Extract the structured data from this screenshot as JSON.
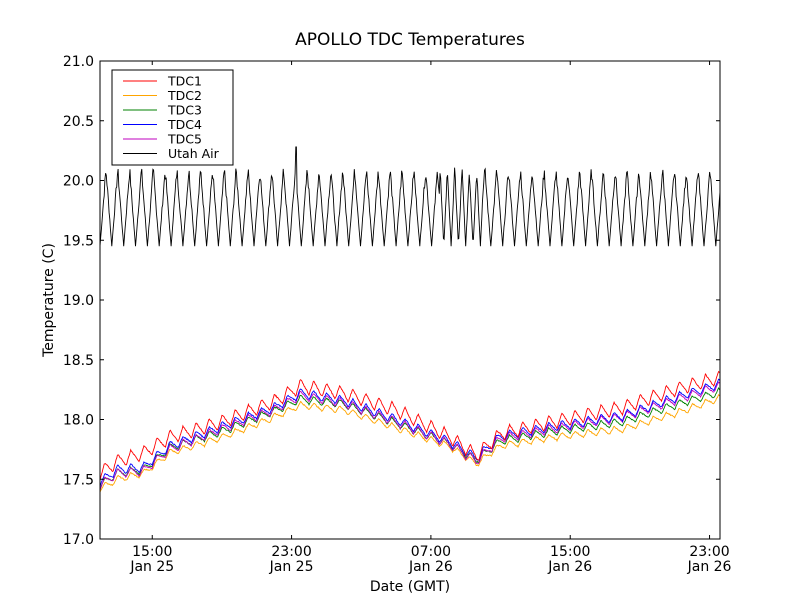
{
  "chart_data": {
    "type": "line",
    "title": "APOLLO TDC Temperatures",
    "xlabel": "Date (GMT)",
    "ylabel": "Temperature (C)",
    "x_unit": "hours since 12:00 Jan 25 (GMT)",
    "xlim": [
      0,
      35.6
    ],
    "ylim": [
      17.0,
      21.0
    ],
    "grid": false,
    "legend_position": "top-left",
    "x_ticks": [
      {
        "value": 3,
        "label_time": "15:00",
        "label_date": "Jan 25"
      },
      {
        "value": 11,
        "label_time": "23:00",
        "label_date": "Jan 25"
      },
      {
        "value": 19,
        "label_time": "07:00",
        "label_date": "Jan 26"
      },
      {
        "value": 27,
        "label_time": "15:00",
        "label_date": "Jan 26"
      },
      {
        "value": 35,
        "label_time": "23:00",
        "label_date": "Jan 26"
      }
    ],
    "y_ticks": [
      "17.0",
      "17.5",
      "18.0",
      "18.5",
      "19.0",
      "19.5",
      "20.0",
      "20.5",
      "21.0"
    ],
    "series": [
      {
        "name": "TDC1",
        "color": "#ff0000",
        "trend_x": [
          0,
          1,
          2.5,
          4,
          7,
          10,
          11.5,
          14,
          17,
          20,
          21.6,
          23,
          26,
          30,
          33,
          35.6
        ],
        "trend_y": [
          17.55,
          17.65,
          17.72,
          17.85,
          17.98,
          18.15,
          18.28,
          18.22,
          18.08,
          17.86,
          17.7,
          17.88,
          17.98,
          18.1,
          18.25,
          18.35
        ],
        "ripple_amplitude": 0.06,
        "ripple_period_h": 0.75
      },
      {
        "name": "TDC2",
        "color": "#ffa500",
        "trend_x": [
          0,
          1,
          2.5,
          4,
          7,
          10,
          11.5,
          14,
          17,
          20,
          21.6,
          23,
          26,
          30,
          33,
          35.6
        ],
        "trend_y": [
          17.42,
          17.5,
          17.55,
          17.72,
          17.85,
          18.02,
          18.12,
          18.08,
          17.93,
          17.78,
          17.63,
          17.78,
          17.85,
          17.92,
          18.05,
          18.18
        ],
        "ripple_amplitude": 0.03,
        "ripple_period_h": 0.75
      },
      {
        "name": "TDC3",
        "color": "#008000",
        "trend_x": [
          0,
          1,
          2.5,
          4,
          7,
          10,
          11.5,
          14,
          17,
          20,
          21.6,
          23,
          26,
          30,
          33,
          35.6
        ],
        "trend_y": [
          17.45,
          17.55,
          17.58,
          17.76,
          17.9,
          18.07,
          18.17,
          18.13,
          17.97,
          17.8,
          17.66,
          17.82,
          17.9,
          17.98,
          18.12,
          18.23
        ],
        "ripple_amplitude": 0.035,
        "ripple_period_h": 0.75
      },
      {
        "name": "TDC4",
        "color": "#0000ff",
        "trend_x": [
          0,
          1,
          2.5,
          4,
          7,
          10,
          11.5,
          14,
          17,
          20,
          21.6,
          23,
          26,
          30,
          33,
          35.6
        ],
        "trend_y": [
          17.48,
          17.58,
          17.6,
          17.78,
          17.94,
          18.1,
          18.22,
          18.16,
          18.0,
          17.82,
          17.68,
          17.86,
          17.94,
          18.03,
          18.18,
          18.3
        ],
        "ripple_amplitude": 0.04,
        "ripple_period_h": 0.75
      },
      {
        "name": "TDC5",
        "color": "#bf00bf",
        "trend_x": [
          0,
          1,
          2.5,
          4,
          7,
          10,
          11.5,
          14,
          17,
          20,
          21.6,
          23,
          26,
          30,
          33,
          35.6
        ],
        "trend_y": [
          17.45,
          17.55,
          17.57,
          17.75,
          17.92,
          18.08,
          18.2,
          18.14,
          17.98,
          17.8,
          17.65,
          17.84,
          17.92,
          18.02,
          18.16,
          18.28
        ],
        "ripple_amplitude": 0.04,
        "ripple_period_h": 0.75
      },
      {
        "name": "Utah Air",
        "color": "#000000",
        "mean": 19.77,
        "amplitude": 0.32,
        "oscillation_period_h": 0.68,
        "range_observed": [
          19.42,
          20.28
        ]
      }
    ]
  }
}
